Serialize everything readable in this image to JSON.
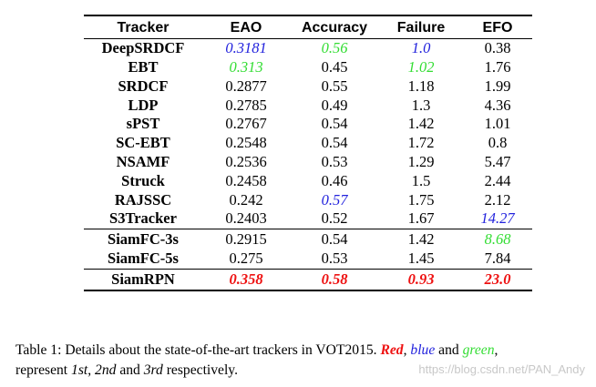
{
  "table": {
    "headers": [
      "Tracker",
      "EAO",
      "Accuracy",
      "Failure",
      "EFO"
    ],
    "rows": [
      {
        "tracker": "DeepSRDCF",
        "eao": "0.3181",
        "eao_rank": 2,
        "accuracy": "0.56",
        "accuracy_rank": 3,
        "failure": "1.0",
        "failure_rank": 2,
        "efo": "0.38",
        "efo_rank": 0
      },
      {
        "tracker": "EBT",
        "eao": "0.313",
        "eao_rank": 3,
        "accuracy": "0.45",
        "accuracy_rank": 0,
        "failure": "1.02",
        "failure_rank": 3,
        "efo": "1.76",
        "efo_rank": 0
      },
      {
        "tracker": "SRDCF",
        "eao": "0.2877",
        "eao_rank": 0,
        "accuracy": "0.55",
        "accuracy_rank": 0,
        "failure": "1.18",
        "failure_rank": 0,
        "efo": "1.99",
        "efo_rank": 0
      },
      {
        "tracker": "LDP",
        "eao": "0.2785",
        "eao_rank": 0,
        "accuracy": "0.49",
        "accuracy_rank": 0,
        "failure": "1.3",
        "failure_rank": 0,
        "efo": "4.36",
        "efo_rank": 0
      },
      {
        "tracker": "sPST",
        "eao": "0.2767",
        "eao_rank": 0,
        "accuracy": "0.54",
        "accuracy_rank": 0,
        "failure": "1.42",
        "failure_rank": 0,
        "efo": "1.01",
        "efo_rank": 0
      },
      {
        "tracker": "SC-EBT",
        "eao": "0.2548",
        "eao_rank": 0,
        "accuracy": "0.54",
        "accuracy_rank": 0,
        "failure": "1.72",
        "failure_rank": 0,
        "efo": "0.8",
        "efo_rank": 0
      },
      {
        "tracker": "NSAMF",
        "eao": "0.2536",
        "eao_rank": 0,
        "accuracy": "0.53",
        "accuracy_rank": 0,
        "failure": "1.29",
        "failure_rank": 0,
        "efo": "5.47",
        "efo_rank": 0
      },
      {
        "tracker": "Struck",
        "eao": "0.2458",
        "eao_rank": 0,
        "accuracy": "0.46",
        "accuracy_rank": 0,
        "failure": "1.5",
        "failure_rank": 0,
        "efo": "2.44",
        "efo_rank": 0
      },
      {
        "tracker": "RAJSSC",
        "eao": "0.242",
        "eao_rank": 0,
        "accuracy": "0.57",
        "accuracy_rank": 2,
        "failure": "1.75",
        "failure_rank": 0,
        "efo": "2.12",
        "efo_rank": 0
      },
      {
        "tracker": "S3Tracker",
        "eao": "0.2403",
        "eao_rank": 0,
        "accuracy": "0.52",
        "accuracy_rank": 0,
        "failure": "1.67",
        "failure_rank": 0,
        "efo": "14.27",
        "efo_rank": 2
      },
      {
        "tracker": "SiamFC-3s",
        "eao": "0.2915",
        "eao_rank": 0,
        "accuracy": "0.54",
        "accuracy_rank": 0,
        "failure": "1.42",
        "failure_rank": 0,
        "efo": "8.68",
        "efo_rank": 3
      },
      {
        "tracker": "SiamFC-5s",
        "eao": "0.275",
        "eao_rank": 0,
        "accuracy": "0.53",
        "accuracy_rank": 0,
        "failure": "1.45",
        "failure_rank": 0,
        "efo": "7.84",
        "efo_rank": 0
      },
      {
        "tracker": "SiamRPN",
        "eao": "0.358",
        "eao_rank": 1,
        "accuracy": "0.58",
        "accuracy_rank": 1,
        "failure": "0.93",
        "failure_rank": 1,
        "efo": "23.0",
        "efo_rank": 1
      }
    ],
    "rank_colors": {
      "1": "#ee1111",
      "2": "#2222dd",
      "3": "#33dd33"
    }
  },
  "caption": {
    "prefix": "Table 1: Details about the state-of-the-art trackers in VOT2015. ",
    "red_word": "Red",
    "sep1": ", ",
    "blue_word": "blue",
    "sep2": " and ",
    "green_word": "green",
    "sep3": ",",
    "line2_pre": "represent ",
    "first": "1st",
    "sep4": ", ",
    "second": "2nd",
    "sep5": " and ",
    "third": "3rd",
    "suffix": " respectively."
  },
  "watermark": "https://blog.csdn.net/PAN_Andy"
}
